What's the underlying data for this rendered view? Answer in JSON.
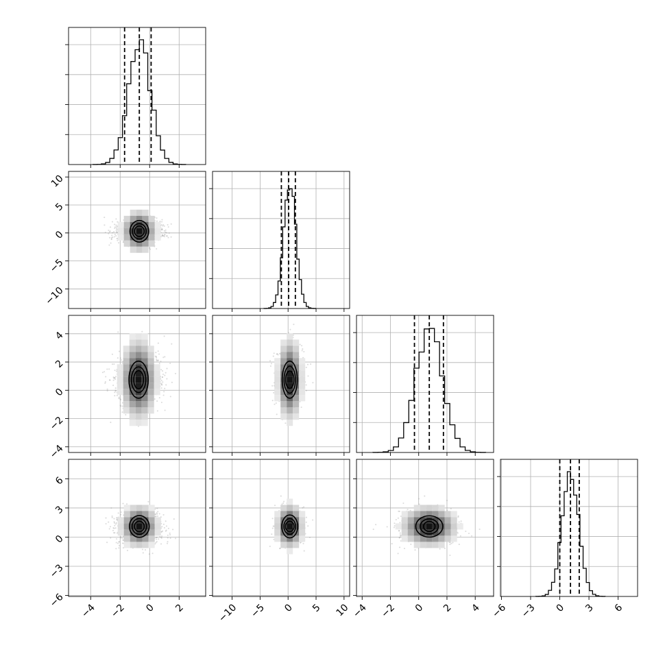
{
  "chart_data": {
    "type": "corner",
    "grid": true,
    "params": [
      {
        "range": [
          -5.5,
          3.8
        ],
        "ticks": [
          -4,
          -2,
          0,
          2
        ],
        "mean": -0.7,
        "sd": 0.75,
        "quantiles": [
          -1.7,
          -0.7,
          0.1
        ],
        "hist_max": 1.0
      },
      {
        "range": [
          -13.5,
          11
        ],
        "ticks": [
          -10,
          -5,
          0,
          5,
          10
        ],
        "mean": 0.3,
        "sd": 1.1,
        "quantiles": [
          -1.2,
          0.1,
          1.3
        ],
        "hist_max": 1.0
      },
      {
        "range": [
          -4.4,
          5.3
        ],
        "ticks": [
          -4,
          -2,
          0,
          2,
          4
        ],
        "mean": 0.75,
        "sd": 0.95,
        "quantiles": [
          -0.3,
          0.75,
          1.75
        ],
        "hist_max": 1.0
      },
      {
        "range": [
          -6.1,
          8
        ],
        "ticks": [
          -6,
          -3,
          0,
          3,
          6
        ],
        "mean": 1.1,
        "sd": 0.85,
        "quantiles": [
          0.0,
          1.1,
          2.0
        ],
        "hist_max": 1.0
      }
    ],
    "pairs": [
      {
        "row": 1,
        "col": 0,
        "density_peak": [
          -0.7,
          0.3
        ],
        "contour_half_widths": [
          [
            0.38,
            0.8
          ],
          [
            0.75,
            1.6
          ],
          [
            1.2,
            2.6
          ]
        ]
      },
      {
        "row": 2,
        "col": 0,
        "density_peak": [
          -0.75,
          0.75
        ],
        "contour_half_widths": [
          [
            0.38,
            0.95
          ],
          [
            0.8,
            1.5
          ],
          [
            1.25,
            2.35
          ]
        ]
      },
      {
        "row": 2,
        "col": 1,
        "density_peak": [
          0.3,
          0.75
        ],
        "contour_half_widths": [
          [
            0.45,
            0.9
          ],
          [
            0.95,
            1.6
          ],
          [
            1.55,
            2.35
          ]
        ]
      },
      {
        "row": 3,
        "col": 0,
        "density_peak": [
          -0.7,
          1.1
        ],
        "contour_half_widths": [
          [
            0.38,
            0.6
          ],
          [
            0.8,
            1.25
          ],
          [
            1.3,
            1.95
          ]
        ]
      },
      {
        "row": 3,
        "col": 1,
        "density_peak": [
          0.3,
          1.1
        ],
        "contour_half_widths": [
          [
            0.5,
            0.6
          ],
          [
            1.0,
            1.25
          ],
          [
            1.7,
            2.1
          ]
        ]
      },
      {
        "row": 3,
        "col": 2,
        "density_peak": [
          0.75,
          1.1
        ],
        "contour_half_widths": [
          [
            0.45,
            0.55
          ],
          [
            0.95,
            1.15
          ],
          [
            1.6,
            1.9
          ]
        ]
      }
    ]
  }
}
